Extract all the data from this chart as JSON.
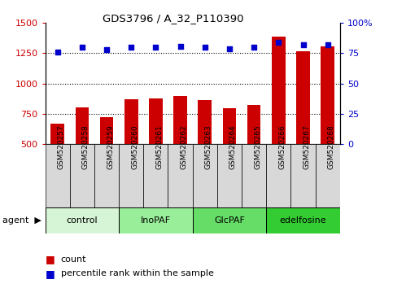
{
  "title": "GDS3796 / A_32_P110390",
  "samples": [
    "GSM520257",
    "GSM520258",
    "GSM520259",
    "GSM520260",
    "GSM520261",
    "GSM520262",
    "GSM520263",
    "GSM520264",
    "GSM520265",
    "GSM520266",
    "GSM520267",
    "GSM520268"
  ],
  "counts": [
    670,
    805,
    725,
    870,
    875,
    900,
    865,
    795,
    820,
    1390,
    1265,
    1310
  ],
  "percentile_ranks": [
    76,
    80,
    78,
    80,
    80,
    81,
    80,
    79,
    80,
    84,
    82,
    82
  ],
  "groups": [
    {
      "label": "control",
      "start": 0,
      "end": 3,
      "color": "#d6f5d6"
    },
    {
      "label": "InoPAF",
      "start": 3,
      "end": 6,
      "color": "#99ee99"
    },
    {
      "label": "GlcPAF",
      "start": 6,
      "end": 9,
      "color": "#66dd66"
    },
    {
      "label": "edelfosine",
      "start": 9,
      "end": 12,
      "color": "#33cc33"
    }
  ],
  "bar_color": "#cc0000",
  "dot_color": "#0000cc",
  "ylim_left": [
    500,
    1500
  ],
  "ylim_right": [
    0,
    100
  ],
  "yticks_left": [
    500,
    750,
    1000,
    1250,
    1500
  ],
  "yticks_right": [
    0,
    25,
    50,
    75,
    100
  ],
  "grid_values": [
    750,
    1000,
    1250
  ],
  "sample_bg_color": "#d8d8d8",
  "plot_bg": "#ffffff",
  "left_tick_color": "#cc0000",
  "right_tick_color": "#0000cc",
  "legend_count_color": "#cc0000",
  "legend_pct_color": "#0000cc"
}
